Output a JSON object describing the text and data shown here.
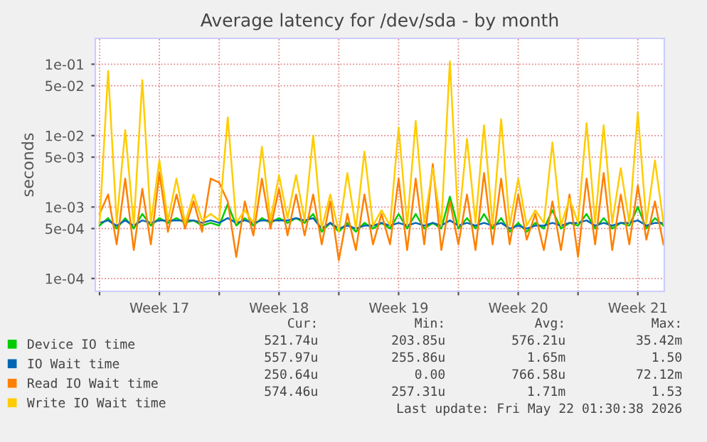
{
  "chart_data": {
    "type": "line",
    "title": "Average latency for /dev/sda - by month",
    "ylabel": "seconds",
    "log": "y",
    "grid": true,
    "legend": "bottom",
    "marker": "none",
    "line_style": "solid",
    "xlim": [
      "2026-04-19T18:00",
      "2026-05-23T01:12"
    ],
    "xticks": [
      {
        "value": "2026-04-20",
        "label": null
      },
      {
        "value": "2026-04-23T12:00",
        "label": "Week 17"
      },
      {
        "value": "2026-04-27",
        "label": null
      },
      {
        "value": "2026-04-30T12:00",
        "label": "Week 18"
      },
      {
        "value": "2026-05-04",
        "label": null
      },
      {
        "value": "2026-05-07T12:00",
        "label": "Week 19"
      },
      {
        "value": "2026-05-11",
        "label": null
      },
      {
        "value": "2026-05-14T12:00",
        "label": "Week 20"
      },
      {
        "value": "2026-05-18",
        "label": null
      },
      {
        "value": "2026-05-21T12:00",
        "label": "Week 21"
      }
    ],
    "ylim": [
      6.6e-05,
      0.23
    ],
    "yticks": [
      {
        "value": 0.0001,
        "label": "1e-04"
      },
      {
        "value": 0.0005,
        "label": "5e-04"
      },
      {
        "value": 0.001,
        "label": "1e-03"
      },
      {
        "value": 0.005,
        "label": "5e-03"
      },
      {
        "value": 0.01,
        "label": "1e-02"
      },
      {
        "value": 0.05,
        "label": "5e-02"
      },
      {
        "value": 0.1,
        "label": "1e-01"
      }
    ],
    "x": [
      "2026-04-20T00:00",
      "2026-04-20T12:00",
      "2026-04-21T00:00",
      "2026-04-21T12:00",
      "2026-04-22T00:00",
      "2026-04-22T12:00",
      "2026-04-23T00:00",
      "2026-04-23T12:00",
      "2026-04-24T00:00",
      "2026-04-24T12:00",
      "2026-04-25T00:00",
      "2026-04-25T12:00",
      "2026-04-26T00:00",
      "2026-04-26T12:00",
      "2026-04-27T00:00",
      "2026-04-27T12:00",
      "2026-04-28T00:00",
      "2026-04-28T12:00",
      "2026-04-29T00:00",
      "2026-04-29T12:00",
      "2026-04-30T00:00",
      "2026-04-30T12:00",
      "2026-05-01T00:00",
      "2026-05-01T12:00",
      "2026-05-02T00:00",
      "2026-05-02T12:00",
      "2026-05-03T00:00",
      "2026-05-03T12:00",
      "2026-05-04T00:00",
      "2026-05-04T12:00",
      "2026-05-05T00:00",
      "2026-05-05T12:00",
      "2026-05-06T00:00",
      "2026-05-06T12:00",
      "2026-05-07T00:00",
      "2026-05-07T12:00",
      "2026-05-08T00:00",
      "2026-05-08T12:00",
      "2026-05-09T00:00",
      "2026-05-09T12:00",
      "2026-05-10T00:00",
      "2026-05-10T12:00",
      "2026-05-11T00:00",
      "2026-05-11T12:00",
      "2026-05-12T00:00",
      "2026-05-12T12:00",
      "2026-05-13T00:00",
      "2026-05-13T12:00",
      "2026-05-14T00:00",
      "2026-05-14T12:00",
      "2026-05-15T00:00",
      "2026-05-15T12:00",
      "2026-05-16T00:00",
      "2026-05-16T12:00",
      "2026-05-17T00:00",
      "2026-05-17T12:00",
      "2026-05-18T00:00",
      "2026-05-18T12:00",
      "2026-05-19T00:00",
      "2026-05-19T12:00",
      "2026-05-20T00:00",
      "2026-05-20T12:00",
      "2026-05-21T00:00",
      "2026-05-21T12:00",
      "2026-05-22T00:00",
      "2026-05-22T12:00",
      "2026-05-23T00:00"
    ],
    "series": [
      {
        "name": "Device IO time",
        "color": "#00cc00",
        "values": [
          0.00055,
          0.0007,
          0.0005,
          0.0007,
          0.0005,
          0.0008,
          0.00055,
          0.0007,
          0.0006,
          0.0007,
          0.0006,
          0.00065,
          0.00055,
          0.0006,
          0.00055,
          0.0011,
          0.00055,
          0.0007,
          0.00055,
          0.0007,
          0.0006,
          0.0007,
          0.0006,
          0.0007,
          0.0006,
          0.0008,
          0.00045,
          0.0006,
          0.00045,
          0.0006,
          0.00045,
          0.0006,
          0.0005,
          0.0006,
          0.0005,
          0.0008,
          0.0005,
          0.0008,
          0.0005,
          0.0006,
          0.0005,
          0.0014,
          0.0005,
          0.0007,
          0.0005,
          0.0008,
          0.0005,
          0.0007,
          0.00045,
          0.0006,
          0.00045,
          0.0006,
          0.0005,
          0.0009,
          0.0005,
          0.0006,
          0.00055,
          0.0008,
          0.0005,
          0.0007,
          0.0005,
          0.0006,
          0.00055,
          0.001,
          0.0005,
          0.0007,
          0.00055
        ]
      },
      {
        "name": "IO Wait time",
        "color": "#0066b3",
        "values": [
          0.0006,
          0.00065,
          0.00055,
          0.00065,
          0.00055,
          0.00065,
          0.0006,
          0.00065,
          0.00065,
          0.00065,
          0.00065,
          0.00065,
          0.0006,
          0.00065,
          0.0006,
          0.0007,
          0.0006,
          0.00065,
          0.0006,
          0.00065,
          0.00065,
          0.00065,
          0.00065,
          0.0007,
          0.00065,
          0.0007,
          0.0005,
          0.0006,
          0.0005,
          0.00055,
          0.0005,
          0.00055,
          0.00055,
          0.0006,
          0.00055,
          0.0006,
          0.00055,
          0.0006,
          0.00055,
          0.0006,
          0.00055,
          0.00065,
          0.00055,
          0.0006,
          0.00055,
          0.0006,
          0.00055,
          0.0006,
          0.0005,
          0.00055,
          0.0005,
          0.00055,
          0.00055,
          0.0006,
          0.00055,
          0.0006,
          0.0006,
          0.00065,
          0.00055,
          0.0006,
          0.00055,
          0.0006,
          0.0006,
          0.00065,
          0.00055,
          0.0006,
          0.0006
        ]
      },
      {
        "name": "Read IO Wait time",
        "color": "#ff8000",
        "values": [
          0.0008,
          0.0015,
          0.0003,
          0.0025,
          0.00025,
          0.0018,
          0.0003,
          0.003,
          0.00045,
          0.0015,
          0.0005,
          0.0012,
          0.00045,
          0.0025,
          0.0022,
          0.0012,
          0.0002,
          0.0012,
          0.0004,
          0.0025,
          0.0005,
          0.0018,
          0.0004,
          0.0015,
          0.0004,
          0.0015,
          0.0003,
          0.0012,
          0.00018,
          0.0008,
          0.00025,
          0.0015,
          0.0003,
          0.0008,
          0.0003,
          0.0025,
          0.00025,
          0.0025,
          0.0003,
          0.004,
          0.00025,
          0.0012,
          0.0003,
          0.0015,
          0.00025,
          0.003,
          0.0003,
          0.0025,
          0.0003,
          0.0015,
          0.00035,
          0.0008,
          0.00025,
          0.0012,
          0.00025,
          0.0015,
          0.0002,
          0.0025,
          0.0003,
          0.003,
          0.00025,
          0.0015,
          0.0003,
          0.002,
          0.00035,
          0.0012,
          0.0003
        ]
      },
      {
        "name": "Write IO Wait time",
        "color": "#ffcc00",
        "values": [
          0.0006,
          0.08,
          0.0006,
          0.012,
          0.00055,
          0.06,
          0.0006,
          0.0045,
          0.00065,
          0.0025,
          0.0006,
          0.0015,
          0.00065,
          0.0008,
          0.00065,
          0.018,
          0.0006,
          0.0009,
          0.0006,
          0.007,
          0.00065,
          0.0028,
          0.0007,
          0.0028,
          0.00065,
          0.01,
          0.0005,
          0.0015,
          0.00045,
          0.003,
          0.0005,
          0.006,
          0.00055,
          0.0009,
          0.00055,
          0.013,
          0.00055,
          0.016,
          0.0006,
          0.0035,
          0.00055,
          0.11,
          0.00055,
          0.009,
          0.0006,
          0.014,
          0.00055,
          0.017,
          0.00055,
          0.0025,
          0.00055,
          0.0009,
          0.0006,
          0.008,
          0.00055,
          0.0013,
          0.0006,
          0.015,
          0.0006,
          0.014,
          0.0006,
          0.0035,
          0.0006,
          0.021,
          0.0006,
          0.0045,
          0.0006
        ]
      }
    ],
    "annotations": [
      "Cur:",
      "Min:",
      "Avg:",
      "Max:",
      "521.74u",
      "203.85u",
      "576.21u",
      "35.42m",
      "557.97u",
      "255.86u",
      "1.65m",
      "1.50",
      "250.64u",
      "0.00",
      "766.58u",
      "72.12m",
      "574.46u",
      "257.31u",
      "1.71m",
      "1.53",
      "Last update: Fri May 22 01:30:38 2026"
    ]
  }
}
